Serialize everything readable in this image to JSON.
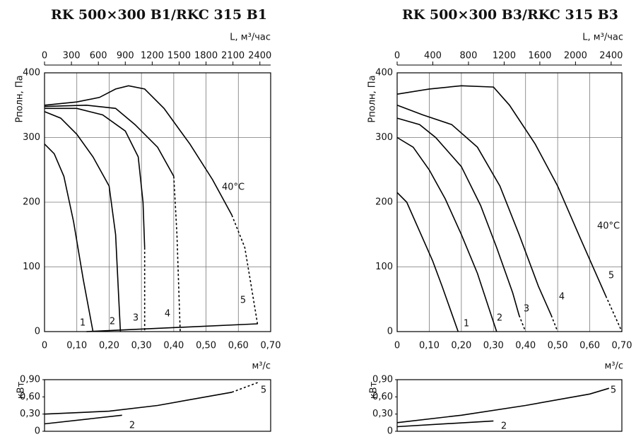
{
  "chart_data": [
    {
      "type": "line",
      "title": "RK 500×300 B1/RKC 315 B1",
      "x_label": "м³/с",
      "x2_label": "L, м³/час",
      "y_label": "Рполн, Па",
      "xlim": [
        0,
        0.7
      ],
      "xticks": [
        0,
        {
          "value": 0.1,
          "label": "0,10"
        },
        {
          "value": 0.2,
          "label": "0,20"
        },
        {
          "value": 0.3,
          "label": "0,30"
        },
        {
          "value": 0.4,
          "label": "0,40"
        },
        {
          "value": 0.5,
          "label": "0,50"
        },
        {
          "value": 0.6,
          "label": "0,60"
        },
        {
          "value": 0.7,
          "label": "0,70"
        }
      ],
      "x2lim": [
        0,
        2520
      ],
      "x2ticks": [
        0,
        300,
        600,
        900,
        1200,
        1500,
        1800,
        2100,
        2400
      ],
      "ylim": [
        0,
        400
      ],
      "yticks": [
        0,
        100,
        200,
        300,
        400
      ],
      "grid": true,
      "annotations": [
        "40°C"
      ],
      "series": [
        {
          "name": "1",
          "color": "#000",
          "x": [
            0,
            0.03,
            0.06,
            0.09,
            0.12,
            0.15
          ],
          "values": [
            290,
            275,
            240,
            170,
            80,
            0
          ]
        },
        {
          "name": "2",
          "color": "#000",
          "x": [
            0,
            0.05,
            0.1,
            0.15,
            0.2,
            0.22,
            0.23,
            0.235
          ],
          "values": [
            340,
            330,
            305,
            270,
            225,
            150,
            50,
            0
          ]
        },
        {
          "name": "3",
          "color": "#000",
          "x": [
            0,
            0.1,
            0.18,
            0.25,
            0.29,
            0.305,
            0.31
          ],
          "values": [
            345,
            345,
            335,
            310,
            270,
            200,
            130
          ]
        },
        {
          "name": "4",
          "color": "#000",
          "x": [
            0,
            0.13,
            0.22,
            0.28,
            0.35,
            0.4
          ],
          "values": [
            348,
            350,
            345,
            320,
            285,
            240
          ]
        },
        {
          "name": "5",
          "color": "#000",
          "x": [
            0,
            0.1,
            0.17,
            0.22,
            0.26,
            0.31,
            0.37,
            0.45,
            0.52,
            0.58
          ],
          "values": [
            350,
            355,
            362,
            375,
            380,
            375,
            345,
            290,
            235,
            180
          ]
        },
        {
          "color": "#000",
          "dashed": true,
          "x": [
            0.31,
            0.31
          ],
          "values": [
            130,
            0
          ]
        },
        {
          "color": "#000",
          "dashed": true,
          "x": [
            0.4,
            0.41,
            0.42
          ],
          "values": [
            240,
            150,
            0
          ]
        },
        {
          "color": "#000",
          "dashed": true,
          "x": [
            0.58,
            0.62,
            0.64,
            0.66
          ],
          "values": [
            180,
            130,
            70,
            10
          ]
        },
        {
          "color": "#000",
          "x": [
            0.13,
            0.66
          ],
          "values": [
            0,
            12
          ]
        }
      ]
    },
    {
      "type": "line",
      "y_label": "кВт",
      "xlim": [
        0,
        0.7
      ],
      "ylim": [
        0,
        0.9
      ],
      "yticks": [
        0,
        {
          "value": 0.3,
          "label": "0,30"
        },
        {
          "value": 0.6,
          "label": "0,60"
        },
        {
          "value": 0.9,
          "label": "0,90"
        }
      ],
      "grid": false,
      "series": [
        {
          "name": "5",
          "color": "#000",
          "x": [
            0,
            0.2,
            0.35,
            0.58
          ],
          "values": [
            0.3,
            0.35,
            0.45,
            0.68
          ]
        },
        {
          "name": "2",
          "color": "#000",
          "x": [
            0,
            0.24
          ],
          "values": [
            0.13,
            0.28
          ]
        },
        {
          "color": "#000",
          "dashed": true,
          "x": [
            0.58,
            0.66
          ],
          "values": [
            0.68,
            0.85
          ]
        }
      ]
    },
    {
      "type": "line",
      "title": "RK 500×300 B3/RKC 315 B3",
      "x_label": "м³/с",
      "x2_label": "L, м³/час",
      "y_label": "Рполн, Па",
      "xlim": [
        0,
        0.7
      ],
      "xticks": [
        0,
        {
          "value": 0.1,
          "label": "0,10"
        },
        {
          "value": 0.2,
          "label": "0,20"
        },
        {
          "value": 0.3,
          "label": "0,30"
        },
        {
          "value": 0.4,
          "label": "0,40"
        },
        {
          "value": 0.5,
          "label": "0,50"
        },
        {
          "value": 0.6,
          "label": "0,60"
        },
        {
          "value": 0.7,
          "label": "0,70"
        }
      ],
      "x2lim": [
        0,
        2520
      ],
      "x2ticks": [
        0,
        400,
        800,
        1200,
        1600,
        2000,
        2400
      ],
      "ylim": [
        0,
        400
      ],
      "yticks": [
        0,
        100,
        200,
        300,
        400
      ],
      "grid": true,
      "annotations": [
        "40°C"
      ],
      "series": [
        {
          "name": "1",
          "color": "#000",
          "x": [
            0,
            0.03,
            0.07,
            0.11,
            0.14,
            0.19
          ],
          "values": [
            215,
            200,
            155,
            110,
            70,
            0
          ]
        },
        {
          "name": "2",
          "color": "#000",
          "x": [
            0,
            0.05,
            0.1,
            0.15,
            0.2,
            0.25,
            0.29,
            0.31
          ],
          "values": [
            300,
            285,
            250,
            205,
            150,
            90,
            30,
            0
          ]
        },
        {
          "name": "3",
          "color": "#000",
          "x": [
            0,
            0.07,
            0.12,
            0.2,
            0.26,
            0.31,
            0.36,
            0.38
          ],
          "values": [
            330,
            320,
            300,
            255,
            195,
            130,
            60,
            25
          ]
        },
        {
          "name": "4",
          "color": "#000",
          "x": [
            0,
            0.08,
            0.17,
            0.25,
            0.32,
            0.38,
            0.44,
            0.48
          ],
          "values": [
            350,
            335,
            320,
            285,
            225,
            150,
            70,
            25
          ]
        },
        {
          "name": "5",
          "color": "#000",
          "x": [
            0,
            0.1,
            0.2,
            0.3,
            0.35,
            0.43,
            0.5,
            0.57,
            0.65
          ],
          "values": [
            367,
            375,
            380,
            378,
            350,
            290,
            225,
            145,
            55
          ]
        },
        {
          "color": "#000",
          "dashed": true,
          "x": [
            0.38,
            0.4
          ],
          "values": [
            25,
            0
          ]
        },
        {
          "color": "#000",
          "dashed": true,
          "x": [
            0.48,
            0.5
          ],
          "values": [
            25,
            0
          ]
        },
        {
          "color": "#000",
          "dashed": true,
          "x": [
            0.65,
            0.7
          ],
          "values": [
            55,
            0
          ]
        }
      ]
    },
    {
      "type": "line",
      "y_label": "кВт",
      "xlim": [
        0,
        0.7
      ],
      "ylim": [
        0,
        0.9
      ],
      "yticks": [
        0,
        {
          "value": 0.3,
          "label": "0,30"
        },
        {
          "value": 0.6,
          "label": "0,60"
        },
        {
          "value": 0.9,
          "label": "0,90"
        }
      ],
      "grid": false,
      "series": [
        {
          "name": "5",
          "color": "#000",
          "x": [
            0,
            0.2,
            0.4,
            0.6,
            0.66
          ],
          "values": [
            0.15,
            0.28,
            0.45,
            0.65,
            0.75
          ]
        },
        {
          "name": "2",
          "color": "#000",
          "x": [
            0,
            0.3
          ],
          "values": [
            0.08,
            0.18
          ]
        }
      ]
    }
  ]
}
